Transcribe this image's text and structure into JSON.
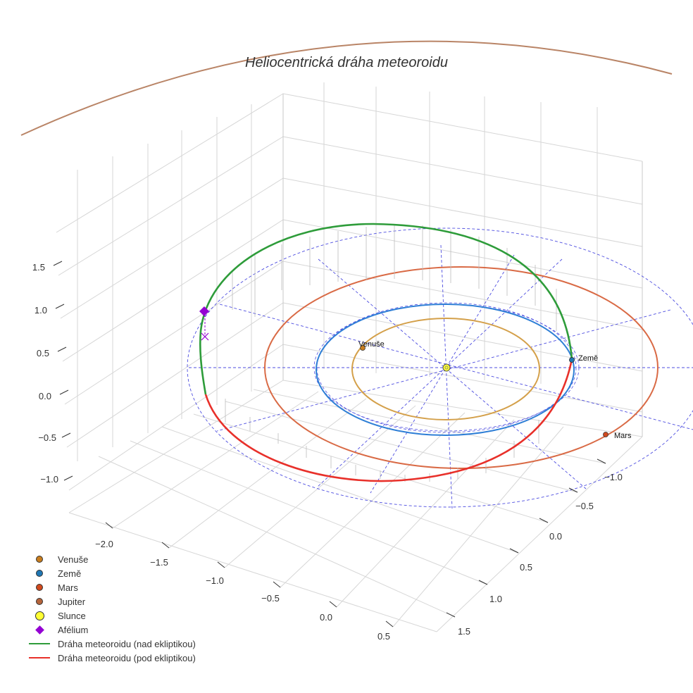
{
  "chart_data": {
    "type": "3d-orbit",
    "title": "Heliocentrická dráha meteoroidu",
    "axes": {
      "x_ticks": [
        "−2.0",
        "−1.5",
        "−1.0",
        "−0.5",
        "0.0",
        "0.5"
      ],
      "y_ticks": [
        "−1.0",
        "−0.5",
        "0.0",
        "0.5",
        "1.0",
        "1.5"
      ],
      "z_ticks": [
        "1.5",
        "1.0",
        "0.5",
        "0.0",
        "−0.5",
        "−1.0"
      ],
      "x_range": [
        -2.3,
        0.8
      ],
      "y_range": [
        -1.3,
        1.7
      ],
      "z_range": [
        -1.4,
        1.8
      ]
    },
    "planets": [
      {
        "name": "Venuše",
        "semi_major_axis_au": 0.72,
        "color": "#d4a04a",
        "marker_color": "#c87d1e"
      },
      {
        "name": "Země",
        "semi_major_axis_au": 1.0,
        "color": "#2f7fd6",
        "marker_color": "#1f77b4"
      },
      {
        "name": "Mars",
        "semi_major_axis_au": 1.52,
        "color": "#d96a45",
        "marker_color": "#d1491d"
      },
      {
        "name": "Jupiter",
        "semi_major_axis_au": 5.2,
        "color": "#b98466",
        "marker_color": "#b5643b"
      }
    ],
    "sun": {
      "name": "Slunce",
      "color": "#ffff33"
    },
    "meteoroid": {
      "aphelion_label": "Afélium",
      "aphelion_color": "#9400d3",
      "above_label": "Dráha meteoroidu (nad ekliptikou)",
      "below_label": "Dráha meteoroidu (pod ekliptikou)",
      "above_color": "#2e9c3a",
      "below_color": "#e8302a"
    },
    "ecliptic_grid_color": "#4d4de0"
  },
  "legend": [
    {
      "label": "Venuše",
      "kind": "dot",
      "color": "#c87d1e"
    },
    {
      "label": "Země",
      "kind": "dot",
      "color": "#1f77b4"
    },
    {
      "label": "Mars",
      "kind": "dot",
      "color": "#d1491d"
    },
    {
      "label": "Jupiter",
      "kind": "dot",
      "color": "#b5643b"
    },
    {
      "label": "Slunce",
      "kind": "bigdot",
      "color": "#ffff33"
    },
    {
      "label": "Afélium",
      "kind": "diamond",
      "color": "#9400d3"
    },
    {
      "label": "Dráha meteoroidu (nad ekliptikou)",
      "kind": "line",
      "color": "#2e9c3a"
    },
    {
      "label": "Dráha meteoroidu (pod ekliptikou)",
      "kind": "line",
      "color": "#e8302a"
    }
  ]
}
